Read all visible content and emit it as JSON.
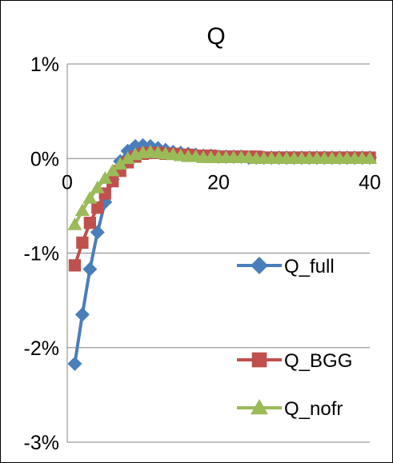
{
  "chart_data": {
    "type": "line",
    "title": "Q",
    "xlabel": "",
    "ylabel": "",
    "xlim": [
      0,
      40
    ],
    "ylim": [
      -3,
      1
    ],
    "x_ticks": [
      0,
      20,
      40
    ],
    "x_tick_labels": [
      "0",
      "20",
      "40"
    ],
    "y_ticks": [
      1,
      0,
      -1,
      -2,
      -3
    ],
    "y_tick_labels": [
      "1%",
      "0%",
      "-1%",
      "-2%",
      "-3%"
    ],
    "grid": "horizontal",
    "legend_position": "right, stacked vertically inside plot",
    "x": [
      1,
      2,
      3,
      4,
      5,
      6,
      7,
      8,
      9,
      10,
      11,
      12,
      13,
      14,
      15,
      16,
      17,
      18,
      19,
      20,
      21,
      22,
      23,
      24,
      25,
      26,
      27,
      28,
      29,
      30,
      31,
      32,
      33,
      34,
      35,
      36,
      37,
      38,
      39,
      40
    ],
    "series": [
      {
        "name": "Q_full",
        "color": "#4a7ebb",
        "marker": "diamond",
        "values": [
          -2.17,
          -1.65,
          -1.17,
          -0.78,
          -0.46,
          -0.22,
          -0.03,
          0.08,
          0.13,
          0.14,
          0.13,
          0.11,
          0.09,
          0.07,
          0.06,
          0.05,
          0.04,
          0.03,
          0.03,
          0.02,
          0.02,
          0.02,
          0.02,
          0.01,
          0.01,
          0.01,
          0.01,
          0.01,
          0.01,
          0.01,
          0.01,
          0.01,
          0.01,
          0.01,
          0.01,
          0.01,
          0.01,
          0.01,
          0.01,
          0.01
        ]
      },
      {
        "name": "Q_BGG",
        "color": "#c0504d",
        "marker": "square",
        "values": [
          -1.13,
          -0.89,
          -0.68,
          -0.52,
          -0.37,
          -0.24,
          -0.13,
          -0.04,
          0.02,
          0.05,
          0.06,
          0.06,
          0.05,
          0.05,
          0.04,
          0.04,
          0.03,
          0.03,
          0.03,
          0.02,
          0.02,
          0.02,
          0.02,
          0.02,
          0.02,
          0.01,
          0.01,
          0.01,
          0.01,
          0.01,
          0.01,
          0.01,
          0.01,
          0.01,
          0.01,
          0.01,
          0.01,
          0.01,
          0.01,
          0.01
        ]
      },
      {
        "name": "Q_nofr",
        "color": "#9bbb59",
        "marker": "triangle",
        "values": [
          -0.7,
          -0.55,
          -0.42,
          -0.31,
          -0.21,
          -0.13,
          -0.06,
          0.0,
          0.04,
          0.06,
          0.07,
          0.06,
          0.05,
          0.04,
          0.03,
          0.02,
          0.02,
          0.01,
          0.01,
          0.01,
          0.01,
          0.01,
          0.01,
          0.01,
          0.0,
          0.0,
          0.0,
          0.0,
          0.0,
          0.0,
          0.0,
          0.0,
          0.0,
          0.0,
          0.0,
          0.0,
          0.0,
          0.0,
          0.0,
          0.0
        ]
      }
    ]
  }
}
